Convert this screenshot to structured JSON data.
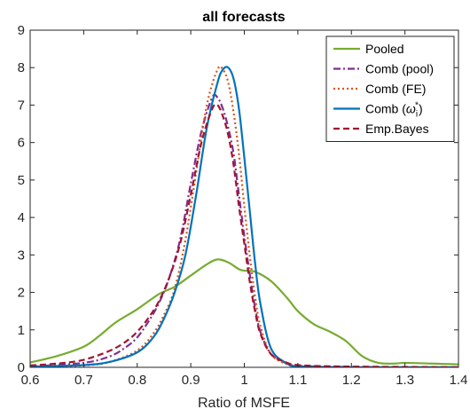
{
  "chart_data": {
    "type": "line",
    "title": "all forecasts",
    "xlabel": "Ratio of MSFE",
    "ylabel": "",
    "xlim": [
      0.6,
      1.4
    ],
    "ylim": [
      0,
      9
    ],
    "xticks": [
      0.6,
      0.7,
      0.8,
      0.9,
      1.0,
      1.1,
      1.2,
      1.3,
      1.4
    ],
    "xtick_labels": [
      "0.6",
      "0.7",
      "0.8",
      "0.9",
      "1",
      "1.1",
      "1.2",
      "1.3",
      "1.4"
    ],
    "yticks": [
      0,
      1,
      2,
      3,
      4,
      5,
      6,
      7,
      8,
      9
    ],
    "ytick_labels": [
      "0",
      "1",
      "2",
      "3",
      "4",
      "5",
      "6",
      "7",
      "8",
      "9"
    ],
    "grid": false,
    "legend_position": "top-right",
    "series": [
      {
        "name": "Pooled",
        "color": "#77AC30",
        "dash": "solid",
        "legend_parts": [
          "Pooled"
        ],
        "x": [
          0.6,
          0.65,
          0.7,
          0.73,
          0.76,
          0.8,
          0.84,
          0.87,
          0.9,
          0.93,
          0.95,
          0.97,
          0.99,
          1.0,
          1.02,
          1.05,
          1.08,
          1.1,
          1.13,
          1.16,
          1.19,
          1.22,
          1.25,
          1.28,
          1.3,
          1.35,
          1.4
        ],
        "values": [
          0.13,
          0.3,
          0.55,
          0.85,
          1.2,
          1.55,
          1.95,
          2.15,
          2.45,
          2.75,
          2.88,
          2.8,
          2.62,
          2.58,
          2.55,
          2.3,
          1.85,
          1.5,
          1.15,
          0.95,
          0.7,
          0.3,
          0.12,
          0.1,
          0.12,
          0.1,
          0.08
        ]
      },
      {
        "name": "Comb (pool)",
        "color": "#7E2F8E",
        "dash": "dashdot",
        "legend_parts": [
          "Comb (pool)"
        ],
        "x": [
          0.6,
          0.7,
          0.75,
          0.78,
          0.8,
          0.82,
          0.84,
          0.86,
          0.88,
          0.9,
          0.92,
          0.94,
          0.95,
          0.96,
          0.97,
          0.98,
          0.99,
          1.0,
          1.01,
          1.02,
          1.03,
          1.05,
          1.08,
          1.1,
          1.15,
          1.2,
          1.3,
          1.4
        ],
        "values": [
          0.02,
          0.12,
          0.3,
          0.55,
          0.8,
          1.2,
          1.7,
          2.4,
          3.4,
          4.9,
          6.3,
          7.2,
          7.2,
          6.9,
          6.4,
          5.7,
          4.6,
          3.5,
          2.5,
          1.6,
          0.95,
          0.35,
          0.1,
          0.04,
          0.02,
          0.01,
          0.0,
          0.0
        ]
      },
      {
        "name": "Comb (FE)",
        "color": "#D95319",
        "dash": "dotted",
        "legend_parts": [
          "Comb (FE)"
        ],
        "x": [
          0.6,
          0.7,
          0.75,
          0.8,
          0.83,
          0.85,
          0.87,
          0.89,
          0.91,
          0.93,
          0.95,
          0.96,
          0.97,
          0.98,
          0.99,
          1.0,
          1.01,
          1.02,
          1.03,
          1.05,
          1.08,
          1.1,
          1.15,
          1.2,
          1.3,
          1.4
        ],
        "values": [
          0.0,
          0.05,
          0.15,
          0.45,
          0.9,
          1.4,
          2.1,
          3.4,
          5.2,
          7.0,
          7.95,
          7.95,
          7.6,
          6.8,
          5.7,
          4.3,
          3.0,
          1.9,
          1.1,
          0.35,
          0.08,
          0.03,
          0.01,
          0.0,
          0.0,
          0.0
        ]
      },
      {
        "name": "Comb (ω_i*)",
        "color": "#0072BD",
        "dash": "solid",
        "legend_parts": [
          "Comb (",
          "ω",
          "i",
          "*",
          ")"
        ],
        "x": [
          0.6,
          0.7,
          0.75,
          0.8,
          0.83,
          0.85,
          0.87,
          0.89,
          0.91,
          0.93,
          0.95,
          0.96,
          0.97,
          0.98,
          0.99,
          1.0,
          1.01,
          1.02,
          1.03,
          1.05,
          1.08,
          1.1,
          1.15,
          1.2,
          1.3,
          1.4
        ],
        "values": [
          0.02,
          0.06,
          0.15,
          0.4,
          0.8,
          1.3,
          2.0,
          3.0,
          4.6,
          6.4,
          7.6,
          7.95,
          8.0,
          7.7,
          6.9,
          5.6,
          4.2,
          2.8,
          1.7,
          0.5,
          0.1,
          0.03,
          0.01,
          0.0,
          0.0,
          0.0
        ]
      },
      {
        "name": "Emp.Bayes",
        "color": "#A2142F",
        "dash": "dashed",
        "legend_parts": [
          "Emp.Bayes"
        ],
        "x": [
          0.6,
          0.65,
          0.7,
          0.75,
          0.78,
          0.8,
          0.82,
          0.84,
          0.86,
          0.88,
          0.9,
          0.92,
          0.94,
          0.95,
          0.96,
          0.97,
          0.98,
          0.99,
          1.0,
          1.01,
          1.02,
          1.03,
          1.05,
          1.08,
          1.1,
          1.15,
          1.2,
          1.3,
          1.4
        ],
        "values": [
          0.05,
          0.1,
          0.2,
          0.45,
          0.7,
          0.95,
          1.3,
          1.75,
          2.4,
          3.3,
          4.6,
          6.0,
          6.9,
          7.0,
          6.7,
          6.2,
          5.4,
          4.3,
          3.3,
          2.3,
          1.5,
          0.9,
          0.35,
          0.12,
          0.06,
          0.03,
          0.02,
          0.01,
          0.0
        ]
      }
    ]
  }
}
